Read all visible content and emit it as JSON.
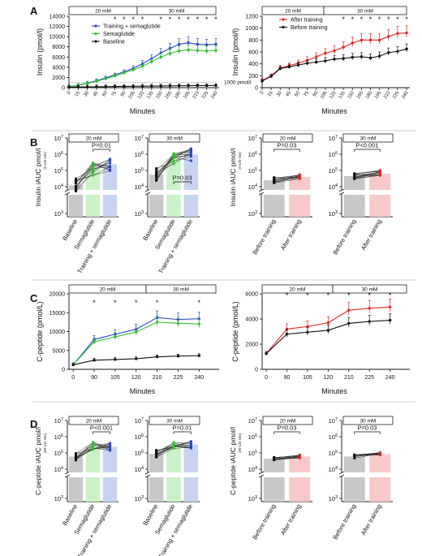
{
  "colors": {
    "blue": "#2b47c8",
    "green": "#2ec02e",
    "black": "#111111",
    "red": "#e0262a",
    "grey": "#7a7a7a",
    "bar_grey": "#c8c8c8",
    "bar_green": "#c9f2c6",
    "bar_blue": "#c6d4f0",
    "bar_red": "#f7c9c9",
    "band": "#ededed"
  },
  "panels": {
    "A": "A",
    "B": "B",
    "C": "C",
    "D": "D"
  },
  "period_labels": {
    "first": "20 mM",
    "second": "30 mM"
  },
  "chart_data": [
    {
      "id": "A_left",
      "type": "line",
      "xlabel": "Minutes",
      "ylabel": "Insulin (pmol/l)",
      "ylim": [
        0,
        14000
      ],
      "yticks": [
        0,
        2000,
        4000,
        6000,
        8000,
        10000,
        12000,
        14000
      ],
      "x": [
        0,
        15,
        30,
        45,
        60,
        75,
        90,
        105,
        120,
        135,
        150,
        165,
        180,
        195,
        210,
        225,
        240
      ],
      "series": [
        {
          "name": "Training + semaglutide",
          "color": "blue",
          "values": [
            200,
            450,
            900,
            1350,
            1900,
            2500,
            3100,
            3800,
            4700,
            5700,
            6800,
            7700,
            8500,
            8800,
            8500,
            8400,
            8500
          ]
        },
        {
          "name": "Semaglutide",
          "color": "green",
          "values": [
            200,
            420,
            850,
            1250,
            1750,
            2300,
            2900,
            3500,
            4200,
            5100,
            6000,
            6700,
            7200,
            7400,
            7300,
            7200,
            7300
          ]
        },
        {
          "name": "Baseline",
          "color": "black",
          "values": [
            100,
            130,
            160,
            180,
            200,
            230,
            250,
            270,
            290,
            310,
            330,
            350,
            370,
            390,
            400,
            410,
            420
          ]
        }
      ],
      "reference_line": {
        "value": 1000,
        "label": "1000 pmol/l"
      },
      "significance_x": [
        75,
        90,
        105,
        120,
        150,
        165,
        180,
        195,
        210,
        225,
        240
      ],
      "grid": false
    },
    {
      "id": "A_right",
      "type": "line",
      "xlabel": "Minutes",
      "ylabel": "Insulin (pmol/l)",
      "ylim": [
        0,
        1200
      ],
      "yticks": [
        0,
        200,
        400,
        600,
        800,
        1000,
        1200
      ],
      "x": [
        0,
        15,
        30,
        45,
        60,
        75,
        90,
        105,
        120,
        135,
        150,
        165,
        180,
        195,
        210,
        225,
        240
      ],
      "series": [
        {
          "name": "After training",
          "color": "red",
          "values": [
            120,
            200,
            330,
            370,
            410,
            460,
            520,
            580,
            620,
            680,
            750,
            800,
            800,
            800,
            860,
            910,
            920
          ]
        },
        {
          "name": "Before training",
          "color": "black",
          "values": [
            110,
            190,
            320,
            350,
            380,
            410,
            430,
            450,
            480,
            490,
            510,
            520,
            500,
            530,
            590,
            610,
            650
          ]
        }
      ],
      "significance_x": [
        135,
        150,
        165,
        180,
        195,
        210,
        225,
        240
      ],
      "grid": false
    },
    {
      "id": "B_1",
      "type": "bar",
      "ylabel": "Insulin iAUC pmol/l",
      "ylabel_sub": "(0-120 min)",
      "period": "20 mM",
      "scale": "log",
      "categories": [
        "Baseline",
        "Semaglutide",
        "Training + semaglutide"
      ],
      "values": [
        12000,
        130000,
        240000
      ],
      "pvalue": "P=0.01",
      "pvalue_between": [
        1,
        2
      ],
      "pvalue_position": "top"
    },
    {
      "id": "B_2",
      "type": "bar",
      "period": "30 mM",
      "scale": "log",
      "categories": [
        "Baseline",
        "Semaglutide",
        "Training + semaglutide"
      ],
      "values": [
        55000,
        500000,
        950000
      ],
      "pvalue": "P=0.03",
      "pvalue_between": [
        1,
        2
      ],
      "pvalue_position": "bottom"
    },
    {
      "id": "B_3",
      "type": "bar",
      "ylabel": "Insulin iAUC pmol/l",
      "ylabel_sub": "(0-120 min)",
      "period": "20 mM",
      "scale": "log",
      "categories": [
        "Before training",
        "After training"
      ],
      "values": [
        25000,
        40000
      ],
      "pvalue": "P=0.03",
      "pvalue_between": [
        0,
        1
      ],
      "pvalue_position": "top"
    },
    {
      "id": "B_4",
      "type": "bar",
      "period": "30 mM",
      "scale": "log",
      "categories": [
        "Before training",
        "After training"
      ],
      "values": [
        45000,
        65000
      ],
      "pvalue": "P<0.001",
      "pvalue_between": [
        0,
        1
      ],
      "pvalue_position": "top"
    },
    {
      "id": "C_left",
      "type": "line",
      "xlabel": "Minutes",
      "ylabel": "C-peptide (pmol/L)",
      "ylim": [
        0,
        20000
      ],
      "yticks": [
        0,
        5000,
        10000,
        15000,
        20000
      ],
      "x": [
        0,
        90,
        105,
        120,
        210,
        225,
        240
      ],
      "xticklabels": [
        "0",
        "90",
        "105",
        "120",
        "210",
        "225",
        "240"
      ],
      "series": [
        {
          "name": "Training + semaglutide",
          "color": "blue",
          "values": [
            1200,
            7900,
            9300,
            10600,
            13700,
            13200,
            13400
          ]
        },
        {
          "name": "Semaglutide",
          "color": "green",
          "values": [
            1200,
            7300,
            8600,
            9900,
            12500,
            12200,
            12000
          ]
        },
        {
          "name": "Baseline",
          "color": "black",
          "values": [
            1200,
            2400,
            2600,
            2800,
            3300,
            3500,
            3600
          ]
        }
      ],
      "significance_x": [
        90,
        105,
        120,
        210,
        240
      ]
    },
    {
      "id": "C_right",
      "type": "line",
      "xlabel": "Minutes",
      "ylabel": "C-peptide (pmol/L)",
      "ylim": [
        0,
        6000
      ],
      "yticks": [
        0,
        2000,
        4000,
        6000
      ],
      "x": [
        0,
        90,
        105,
        120,
        210,
        225,
        240
      ],
      "xticklabels": [
        "0",
        "90",
        "105",
        "120",
        "210",
        "225",
        "240"
      ],
      "series": [
        {
          "name": "After training",
          "color": "red",
          "values": [
            1250,
            3200,
            3400,
            3700,
            4700,
            4850,
            4950
          ]
        },
        {
          "name": "Before training",
          "color": "black",
          "values": [
            1250,
            2800,
            2950,
            3100,
            3650,
            3800,
            3900
          ]
        }
      ],
      "significance_x": [
        90,
        105,
        120,
        210,
        225,
        240
      ]
    },
    {
      "id": "D_1",
      "type": "bar",
      "ylabel": "C-peptide iAUC pmol/l",
      "ylabel_sub": "(90-120 min)",
      "period": "20 mM",
      "scale": "log",
      "categories": [
        "Baseline",
        "Semaglutide",
        "Training + semaglutide"
      ],
      "values": [
        60000,
        260000,
        240000
      ],
      "pvalue": "P<0.001",
      "pvalue_between": [
        1,
        2
      ],
      "pvalue_position": "top"
    },
    {
      "id": "D_2",
      "type": "bar",
      "period": "30 mM",
      "scale": "log",
      "categories": [
        "Baseline",
        "Semaglutide",
        "Training + semaglutide"
      ],
      "values": [
        90000,
        280000,
        330000
      ],
      "pvalue": "P=0.01",
      "pvalue_between": [
        1,
        2
      ],
      "pvalue_position": "top"
    },
    {
      "id": "D_3",
      "type": "bar",
      "ylabel": "C-peptide iAUC pmol/l",
      "ylabel_sub": "(90-120 min)",
      "period": "20 mM",
      "scale": "log",
      "categories": [
        "Before training",
        "After training"
      ],
      "values": [
        45000,
        60000
      ],
      "pvalue": "P=0.03",
      "pvalue_between": [
        0,
        1
      ],
      "pvalue_position": "top"
    },
    {
      "id": "D_4",
      "type": "bar",
      "period": "30 mM",
      "scale": "log",
      "categories": [
        "Before training",
        "After training"
      ],
      "values": [
        60000,
        85000
      ],
      "pvalue": "P=0.03",
      "pvalue_between": [
        0,
        1
      ],
      "pvalue_position": "top"
    }
  ]
}
